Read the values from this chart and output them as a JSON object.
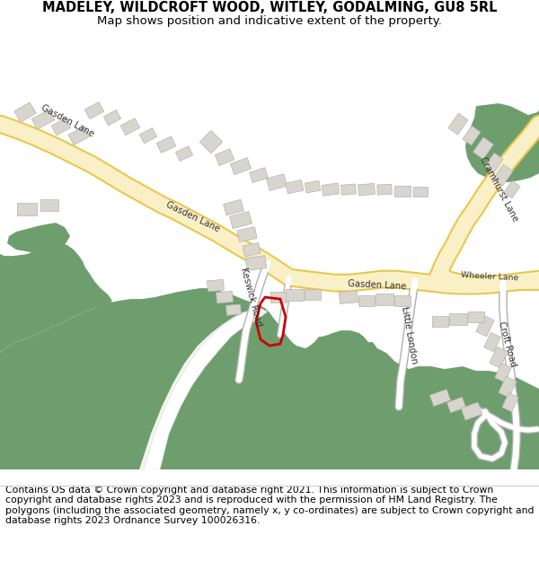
{
  "title": "MADELEY, WILDCROFT WOOD, WITLEY, GODALMING, GU8 5RL",
  "subtitle": "Map shows position and indicative extent of the property.",
  "footer": "Contains OS data © Crown copyright and database right 2021. This information is subject to Crown copyright and database rights 2023 and is reproduced with the permission of HM Land Registry. The polygons (including the associated geometry, namely x, y co-ordinates) are subject to Crown copyright and database rights 2023 Ordnance Survey 100026316.",
  "bg_color": "#ffffff",
  "map_bg": "#f5f4f0",
  "road_major_fill": "#faf0c8",
  "road_major_edge": "#e8c84a",
  "road_minor_fill": "#ffffff",
  "road_minor_edge": "#b0b0b0",
  "green_color": "#6e9e6e",
  "building_fill": "#d8d4ce",
  "building_edge": "#b8b4ae",
  "property_edge": "#cc0000",
  "figsize": [
    6.0,
    6.25
  ],
  "dpi": 100,
  "title_fontsize": 10.5,
  "subtitle_fontsize": 9.5,
  "footer_fontsize": 7.8,
  "label_fontsize": 7.2
}
